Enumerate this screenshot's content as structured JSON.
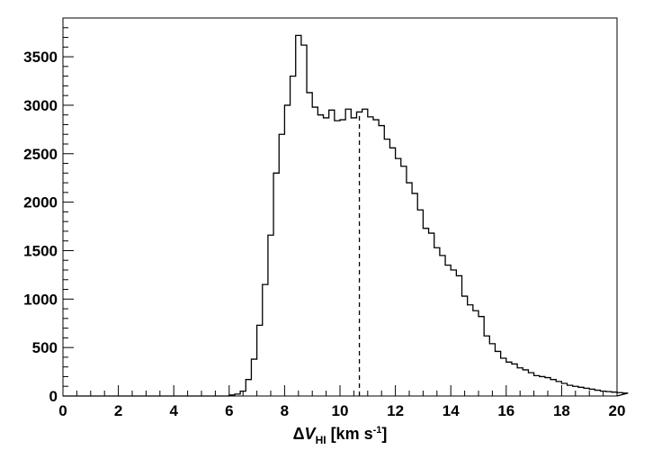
{
  "chart_data": {
    "type": "histogram",
    "xlim": [
      0,
      20
    ],
    "ylim": [
      0,
      3900
    ],
    "x_ticks": [
      0,
      2,
      4,
      6,
      8,
      10,
      12,
      14,
      16,
      18,
      20
    ],
    "y_ticks": [
      0,
      500,
      1000,
      1500,
      2000,
      2500,
      3000,
      3500
    ],
    "xlabel": {
      "delta": "Δ",
      "v": "V",
      "sub": "HI",
      "unit_start": " [km s",
      "sup": "-1",
      "unit_end": "]"
    },
    "ylabel": "",
    "grid": false,
    "bin_width": 0.2,
    "bin_start": 6.0,
    "counts": [
      10,
      20,
      50,
      170,
      380,
      730,
      1150,
      1660,
      2300,
      2700,
      3000,
      3300,
      3720,
      3620,
      3130,
      2980,
      2900,
      2870,
      2950,
      2840,
      2850,
      2960,
      2870,
      2930,
      2960,
      2880,
      2850,
      2790,
      2650,
      2560,
      2450,
      2370,
      2200,
      2090,
      1920,
      1730,
      1680,
      1530,
      1450,
      1350,
      1300,
      1240,
      1030,
      940,
      880,
      820,
      620,
      540,
      460,
      390,
      350,
      330,
      290,
      270,
      240,
      210,
      200,
      190,
      170,
      150,
      130,
      110,
      100,
      90,
      80,
      70,
      60,
      50,
      45,
      40,
      35,
      30
    ],
    "marker_line": {
      "x": 10.7,
      "style": "dashed"
    },
    "colors": {
      "line": "#000000",
      "background": "#ffffff"
    }
  }
}
